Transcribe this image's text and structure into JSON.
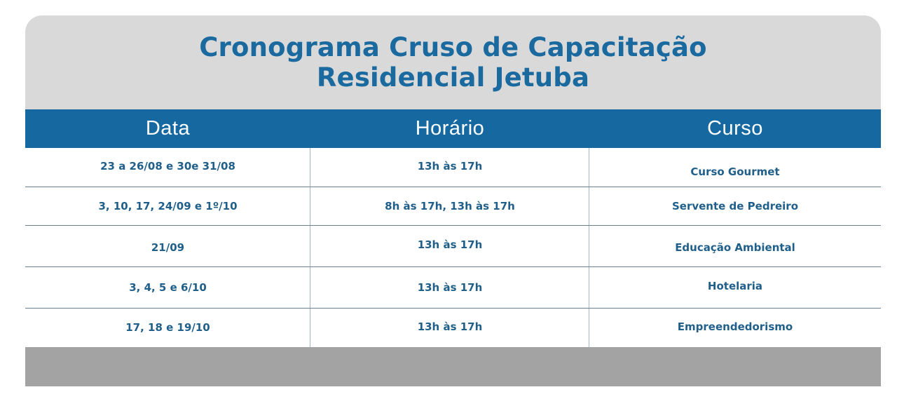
{
  "title": {
    "line1": "Cronograma Cruso de Capacitação",
    "line2": "Residencial Jetuba"
  },
  "table": {
    "headers": [
      "Data",
      "Horário",
      "Curso"
    ],
    "rows": [
      {
        "data": "23 a 26/08 e 30e 31/08",
        "horario": "13h às 17h",
        "curso": "Curso Gourmet"
      },
      {
        "data": "3, 10, 17, 24/09 e 1º/10",
        "horario": "8h às 17h, 13h às 17h",
        "curso": "Servente de Pedreiro"
      },
      {
        "data": "21/09",
        "horario": "13h às 17h",
        "curso": "Educação Ambiental"
      },
      {
        "data": "3, 4, 5 e 6/10",
        "horario": "13h às 17h",
        "curso": "Hotelaria"
      },
      {
        "data": "17, 18 e 19/10",
        "horario": "13h às 17h",
        "curso": "Empreendedorismo"
      }
    ]
  },
  "colors": {
    "title_blue": "#1a6aa0",
    "header_blue": "#1569a0",
    "cell_text": "#1f5f8a",
    "top_gray": "#d9d9d9",
    "footer_gray": "#a3a3a3"
  }
}
